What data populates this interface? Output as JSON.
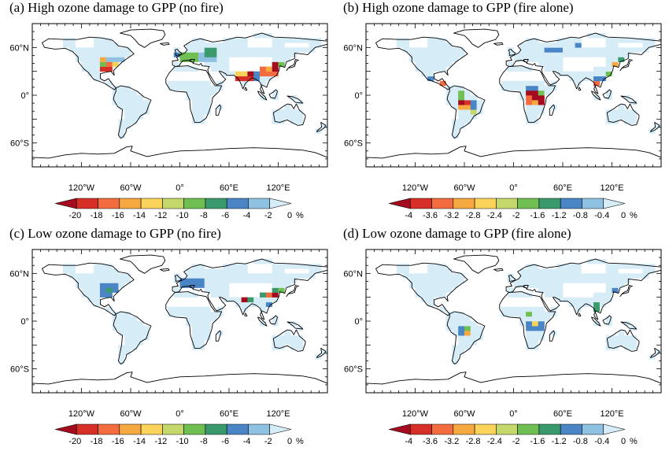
{
  "panels": [
    {
      "id": "a",
      "title": "(a) High ozone damage to GPP (no fire)",
      "colorbar": "cb20",
      "pattern": "nofire_high"
    },
    {
      "id": "b",
      "title": "(b) High ozone damage to GPP (fire alone)",
      "colorbar": "cb4",
      "pattern": "fire_high"
    },
    {
      "id": "c",
      "title": "(c) Low ozone damage to GPP (no fire)",
      "colorbar": "cb20",
      "pattern": "nofire_low"
    },
    {
      "id": "d",
      "title": "(d) Low ozone damage to GPP (fire alone)",
      "colorbar": "cb4",
      "pattern": "fire_low"
    }
  ],
  "axes": {
    "lat_labels": [
      "60°N",
      "0°",
      "60°S"
    ],
    "lon_labels": [
      "120°W",
      "60°W",
      "0°",
      "60°E",
      "120°E"
    ]
  },
  "colorbars": {
    "cb20": {
      "labels": [
        "-20",
        "-18",
        "-16",
        "-14",
        "-12",
        "-10",
        "-8",
        "-6",
        "-4",
        "-2",
        "0"
      ],
      "unit": "%"
    },
    "cb4": {
      "labels": [
        "-4",
        "-3.6",
        "-3.2",
        "-2.8",
        "-2.4",
        "-2",
        "-1.6",
        "-1.2",
        "-0.8",
        "-0.4",
        "0"
      ],
      "unit": "%"
    }
  },
  "palette": [
    "#a50b1e",
    "#d62f27",
    "#f26c3f",
    "#f6a941",
    "#fbd25a",
    "#c5d86c",
    "#6fbf52",
    "#3a9a6e",
    "#4a86c5",
    "#8fc1e3",
    "#d6ecf7"
  ]
}
